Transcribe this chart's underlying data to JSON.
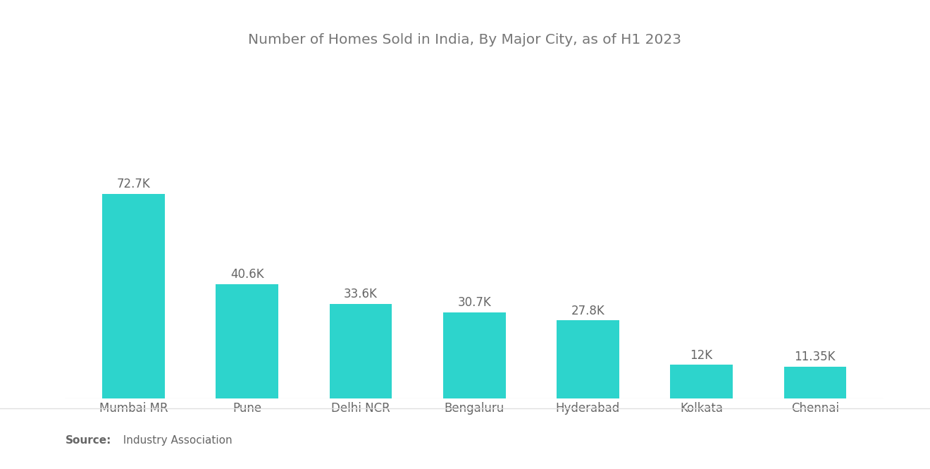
{
  "title": "Number of Homes Sold in India, By Major City, as of H1 2023",
  "categories": [
    "Mumbai MR",
    "Pune",
    "Delhi NCR",
    "Bengaluru",
    "Hyderabad",
    "Kolkata",
    "Chennai"
  ],
  "values": [
    72.7,
    40.6,
    33.6,
    30.7,
    27.8,
    12.0,
    11.35
  ],
  "labels": [
    "72.7K",
    "40.6K",
    "33.6K",
    "30.7K",
    "27.8K",
    "12K",
    "11.35K"
  ],
  "bar_color": "#2DD4CC",
  "background_color": "#ffffff",
  "title_color": "#777777",
  "label_color": "#666666",
  "source_bold": "Source:",
  "source_normal": "  Industry Association",
  "title_fontsize": 14.5,
  "label_fontsize": 12,
  "tick_fontsize": 12,
  "ylim": [
    0,
    100
  ]
}
